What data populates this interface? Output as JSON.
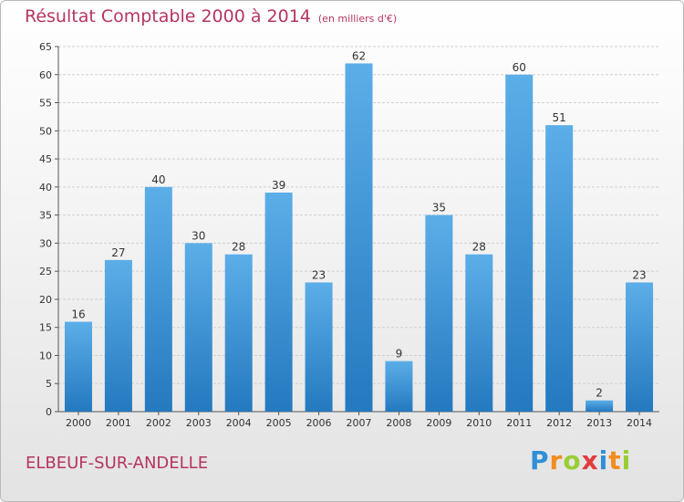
{
  "chart_data": {
    "type": "bar",
    "title": "Résultat Comptable 2000 à 2014",
    "subtitle": "(en milliers d'€)",
    "categories": [
      "2000",
      "2001",
      "2002",
      "2003",
      "2004",
      "2005",
      "2006",
      "2007",
      "2008",
      "2009",
      "2010",
      "2011",
      "2012",
      "2013",
      "2014"
    ],
    "values": [
      16,
      27,
      40,
      30,
      28,
      39,
      23,
      62,
      9,
      35,
      28,
      60,
      51,
      2,
      23
    ],
    "ylim": [
      0,
      65
    ],
    "yticks": [
      0,
      5,
      10,
      15,
      20,
      25,
      30,
      35,
      40,
      45,
      50,
      55,
      60,
      65
    ],
    "grid": true,
    "bar_color": "#3d98dc",
    "xlabel": "",
    "ylabel": ""
  },
  "footer": {
    "location": "ELBEUF-SUR-ANDELLE",
    "logo_text": "Proxiti"
  },
  "colors": {
    "title": "#b5355f",
    "grid": "#d0d0d0",
    "bar_top": "#5caee8",
    "bar_bottom": "#2479bf"
  }
}
